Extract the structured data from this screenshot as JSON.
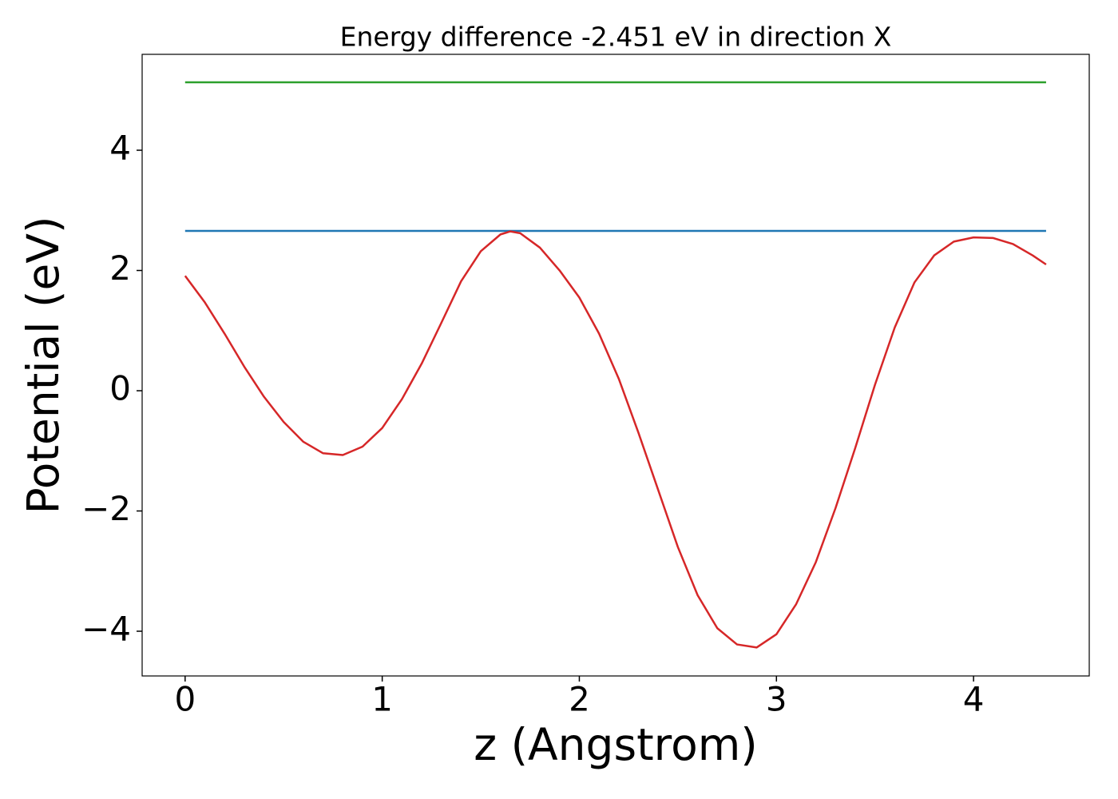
{
  "chart_data": {
    "type": "line",
    "title": "Energy difference -2.451 eV in direction X",
    "xlabel": "z (Angstrom)",
    "ylabel": "Potential (eV)",
    "xlim": [
      -0.218,
      4.587
    ],
    "ylim": [
      -4.744,
      5.595
    ],
    "xticks": [
      0,
      1,
      2,
      3,
      4
    ],
    "yticks": [
      {
        "value": -4,
        "label": "−4"
      },
      {
        "value": -2,
        "label": "−2"
      },
      0,
      2,
      4
    ],
    "grid": false,
    "series": [
      {
        "color": "#2ca02c",
        "x": [
          0,
          4.368
        ],
        "values": [
          5.13,
          5.13
        ]
      },
      {
        "color": "#1f77b4",
        "x": [
          0,
          4.368
        ],
        "values": [
          2.658,
          2.658
        ]
      },
      {
        "color": "#d62728",
        "x": [
          0,
          0.1,
          0.2,
          0.3,
          0.4,
          0.5,
          0.6,
          0.7,
          0.8,
          0.9,
          1.0,
          1.1,
          1.2,
          1.3,
          1.4,
          1.5,
          1.6,
          1.65,
          1.7,
          1.8,
          1.9,
          2.0,
          2.1,
          2.2,
          2.3,
          2.4,
          2.5,
          2.6,
          2.7,
          2.8,
          2.9,
          3.0,
          3.1,
          3.2,
          3.3,
          3.4,
          3.5,
          3.6,
          3.7,
          3.8,
          3.9,
          4.0,
          4.1,
          4.2,
          4.3,
          4.368
        ],
        "values": [
          1.91,
          1.47,
          0.95,
          0.4,
          -0.1,
          -0.52,
          -0.85,
          -1.04,
          -1.07,
          -0.93,
          -0.62,
          -0.14,
          0.45,
          1.13,
          1.82,
          2.32,
          2.6,
          2.65,
          2.62,
          2.38,
          2.0,
          1.55,
          0.95,
          0.2,
          -0.7,
          -1.65,
          -2.6,
          -3.4,
          -3.95,
          -4.22,
          -4.27,
          -4.05,
          -3.55,
          -2.85,
          -1.95,
          -0.95,
          0.1,
          1.05,
          1.8,
          2.25,
          2.48,
          2.55,
          2.54,
          2.44,
          2.25,
          2.1
        ]
      }
    ]
  }
}
